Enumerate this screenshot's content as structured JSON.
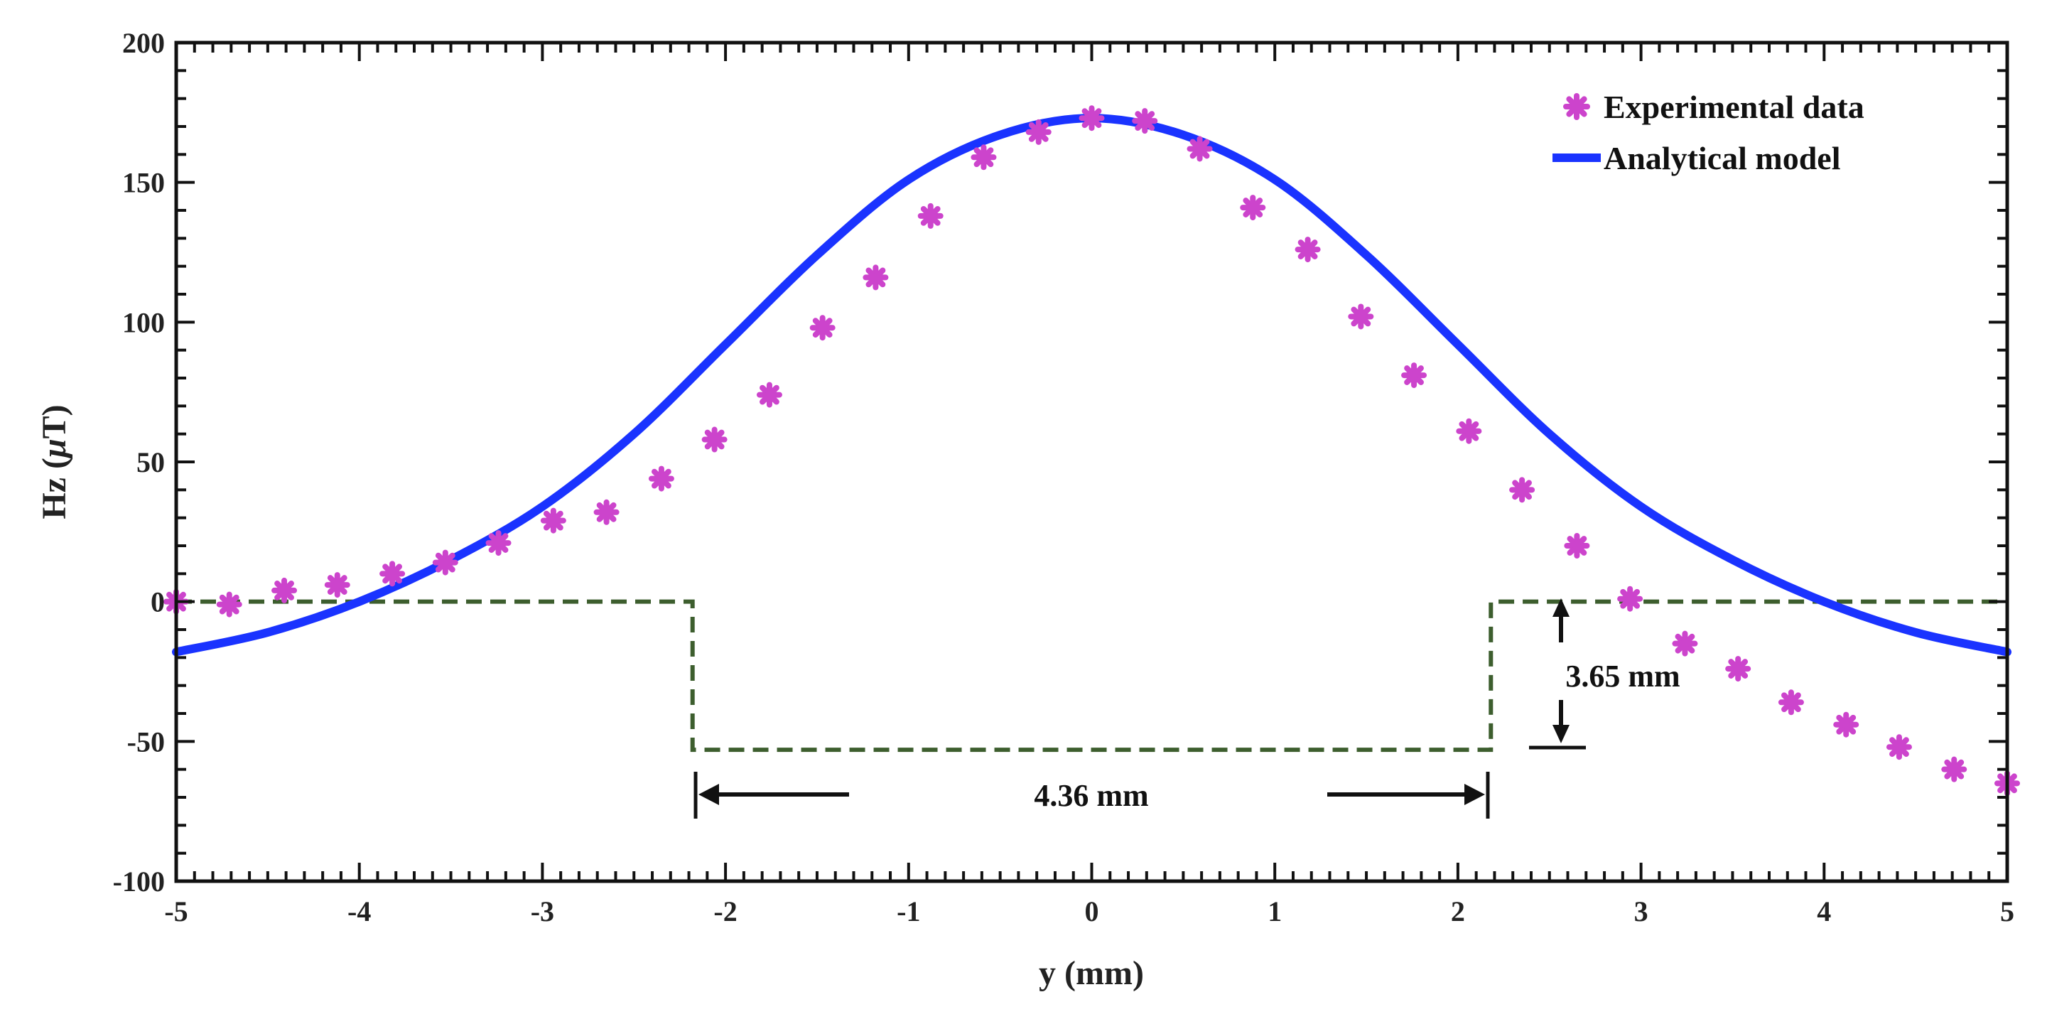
{
  "chart_data": {
    "type": "line",
    "xlabel": "y (mm)",
    "ylabel_prefix": "Hz (",
    "ylabel_mu": "μ",
    "ylabel_suffix": "T)",
    "xlim": [
      -5,
      5
    ],
    "ylim": [
      -100,
      200
    ],
    "xticks": [
      -5,
      -4,
      -3,
      -2,
      -1,
      0,
      1,
      2,
      3,
      4,
      5
    ],
    "yticks": [
      -100,
      -50,
      0,
      50,
      100,
      150,
      200
    ],
    "legend_position": "top-right",
    "series": [
      {
        "name": "Experimental data",
        "kind": "scatter",
        "marker": "asterisk",
        "color": "#cc44cc",
        "x": [
          -5,
          -4.71,
          -4.41,
          -4.12,
          -3.82,
          -3.53,
          -3.24,
          -2.94,
          -2.65,
          -2.35,
          -2.06,
          -1.76,
          -1.47,
          -1.18,
          -0.88,
          -0.59,
          -0.29,
          0,
          0.29,
          0.59,
          0.88,
          1.18,
          1.47,
          1.76,
          2.06,
          2.35,
          2.65,
          2.94,
          3.24,
          3.53,
          3.82,
          4.12,
          4.41,
          4.71,
          5
        ],
        "y": [
          0,
          -1,
          4,
          6,
          10,
          14,
          21,
          29,
          32,
          44,
          58,
          74,
          98,
          116,
          138,
          159,
          168,
          173,
          172,
          162,
          141,
          126,
          102,
          81,
          61,
          40,
          20,
          1,
          -15,
          -24,
          -36,
          -44,
          -52,
          -60,
          -65
        ]
      },
      {
        "name": "Analytical model",
        "kind": "line",
        "color": "#1a33ff",
        "x": [
          -5,
          -4.5,
          -4,
          -3.5,
          -3,
          -2.5,
          -2,
          -1.5,
          -1,
          -0.5,
          0,
          0.5,
          1,
          1.5,
          2,
          2.5,
          3,
          3.5,
          4,
          4.5,
          5
        ],
        "y": [
          -18,
          -11,
          0,
          15,
          34,
          60,
          92,
          124,
          151,
          167,
          173,
          167,
          151,
          124,
          92,
          60,
          34,
          15,
          0,
          -11,
          -18
        ]
      },
      {
        "name": "Geometry profile",
        "kind": "dashed-line",
        "color": "#3d5e2e",
        "x": [
          -5,
          -2.18,
          -2.18,
          2.18,
          2.18,
          5
        ],
        "y": [
          0,
          0,
          -53,
          -53,
          0,
          0
        ]
      }
    ],
    "annotations": {
      "width_label": "4.36 mm",
      "depth_label": "3.65 mm"
    }
  }
}
